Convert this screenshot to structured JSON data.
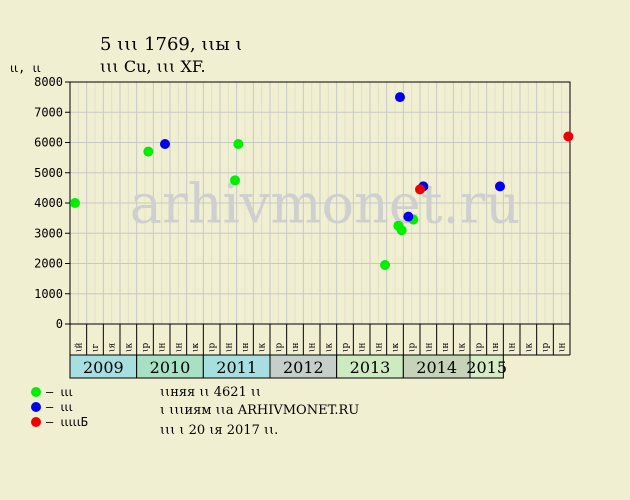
{
  "chart_data": {
    "type": "scatter",
    "title": "5 ꙇꙇꙇ 1769, ꙇꙇы ꙇ",
    "subtitle": "ꙇꙇꙇ Cu, ꙇꙇꙇ XF.",
    "ylabel": "ꙇꙇ, ꙇꙇ",
    "ylim": [
      0,
      8000
    ],
    "yticks": [
      0,
      1000,
      2000,
      3000,
      4000,
      5000,
      6000,
      7000,
      8000
    ],
    "grid": true,
    "watermark": "arhivmonet.ru",
    "x_months": [
      "ꙇй",
      "ꙇг",
      "ꙇя",
      "ꙇк",
      "ꙇр",
      "ꙇн",
      "ꙇн",
      "ꙇк",
      "ꙇр",
      "ꙇн",
      "ꙇн",
      "ꙇк",
      "ꙇр",
      "ꙇн",
      "ꙇн",
      "ꙇк",
      "ꙇр",
      "ꙇн",
      "ꙇн",
      "ꙇк",
      "ꙇр",
      "ꙇн",
      "ꙇн",
      "ꙇк",
      "ꙇр",
      "ꙇн",
      "ꙇн",
      "ꙇк",
      "ꙇр",
      "ꙇн"
    ],
    "years": [
      {
        "label": "2009",
        "from": 0,
        "to": 4,
        "color": "#a7dfe0"
      },
      {
        "label": "2010",
        "from": 4,
        "to": 8,
        "color": "#a8e0c4"
      },
      {
        "label": "2011",
        "from": 8,
        "to": 12,
        "color": "#a7dfe0"
      },
      {
        "label": "2012",
        "from": 12,
        "to": 16,
        "color": "#c3cfc8"
      },
      {
        "label": "2013",
        "from": 16,
        "to": 20,
        "color": "#cdeac0"
      },
      {
        "label": "2014",
        "from": 20,
        "to": 24,
        "color": "#c5d4b8"
      },
      {
        "label": "2015",
        "from": 24,
        "to": 26,
        "color": "#d6ecc6"
      }
    ],
    "series": [
      {
        "color": "#00ee00",
        "points": [
          [
            0.3,
            4000
          ],
          [
            4.7,
            5700
          ],
          [
            9.9,
            4750
          ],
          [
            10.1,
            5950
          ],
          [
            18.9,
            1950
          ],
          [
            19.7,
            3250
          ],
          [
            19.9,
            3100
          ],
          [
            20.6,
            3450
          ]
        ]
      },
      {
        "color": "#0000ee",
        "points": [
          [
            5.7,
            5950
          ],
          [
            19.8,
            7500
          ],
          [
            20.3,
            3550
          ],
          [
            21.2,
            4550
          ],
          [
            25.8,
            4550
          ]
        ]
      },
      {
        "color": "#ee0000",
        "points": [
          [
            21.0,
            4450
          ],
          [
            29.9,
            6200
          ]
        ]
      }
    ]
  },
  "legend": [
    {
      "color": "#00ee00",
      "label": "– ꙇꙇꙇ"
    },
    {
      "color": "#0000ee",
      "label": "– ꙇꙇꙇ"
    },
    {
      "color": "#ee0000",
      "label": "– ꙇꙇꙇꙇꙇБ"
    }
  ],
  "notes": [
    "ꙇꙇняя ꙇꙇ 4621 ꙇꙇ",
    "ꙇ ꙇꙇꙇиям ꙇꙇа ARHIVMONET.RU",
    "ꙇꙇꙇ ꙇ 20 ꙇя 2017 ꙇꙇ."
  ]
}
